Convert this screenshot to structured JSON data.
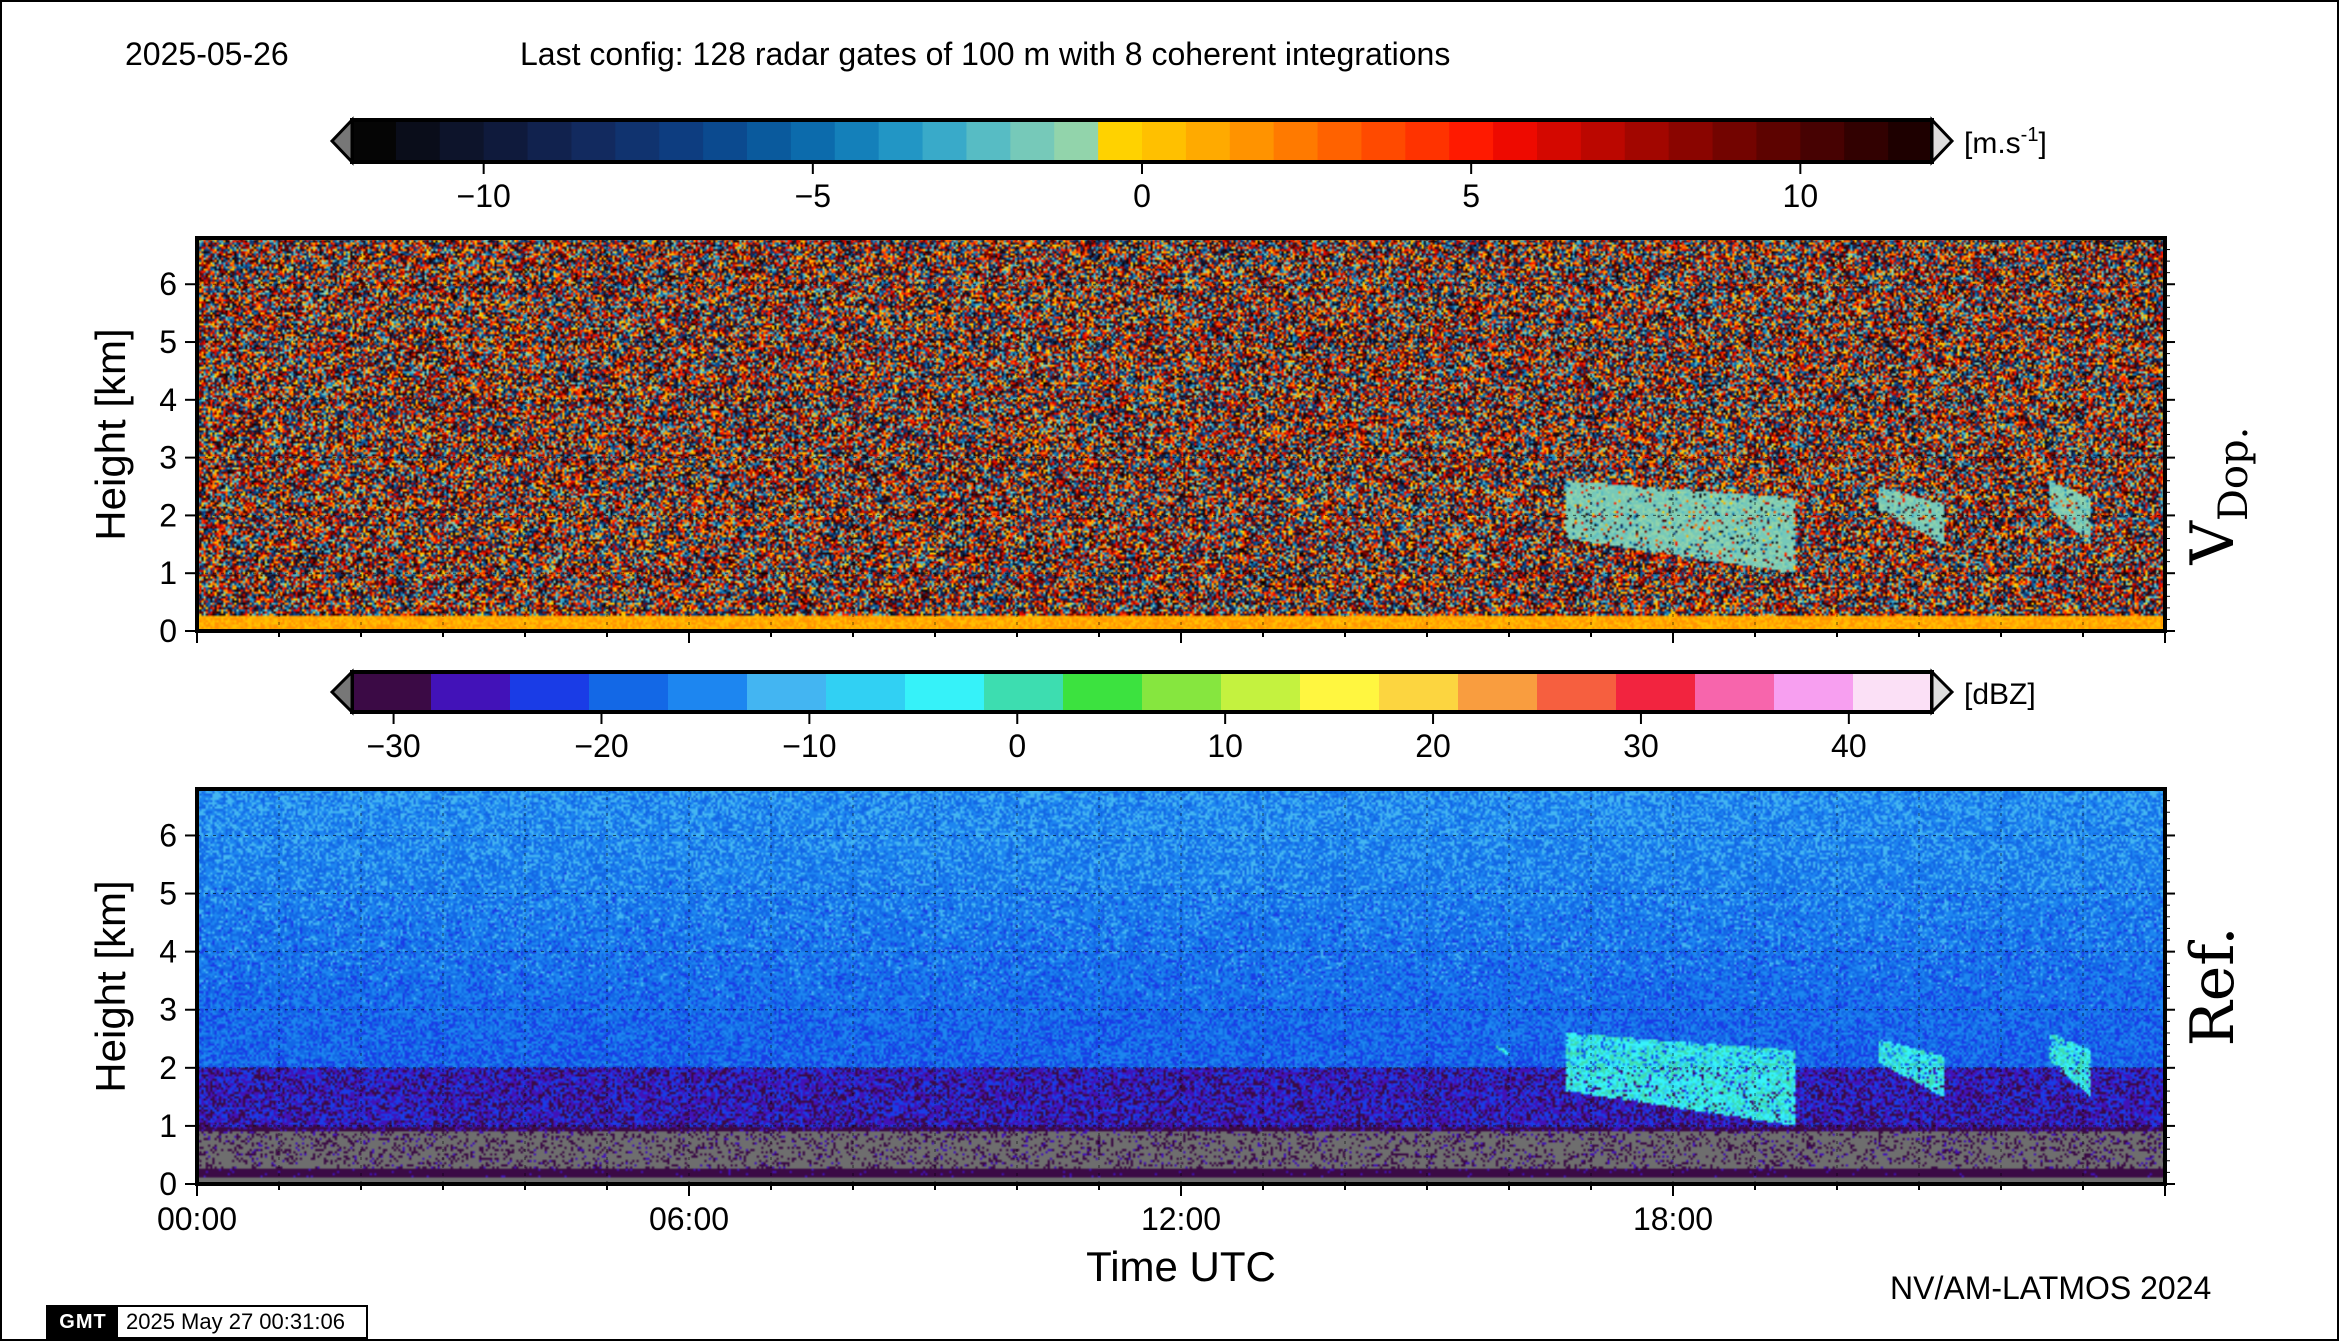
{
  "header": {
    "date": "2025-05-26",
    "config": "Last config: 128 radar gates of 100 m with 8 coherent integrations"
  },
  "footer": {
    "credit": "NV/AM-LATMOS 2024",
    "stamp_logo": "GMT",
    "stamp_time": "2025 May 27 00:31:06"
  },
  "chart_data": [
    {
      "type": "heatmap",
      "panel_label": "V",
      "panel_label_sub": "Dop.",
      "ylabel": "Height [km]",
      "ylim": [
        0,
        6.8
      ],
      "yticks": [
        "0",
        "1",
        "2",
        "3",
        "4",
        "5",
        "6"
      ],
      "xlim": [
        0,
        24
      ],
      "grid": true,
      "colorbar": {
        "unit": "[m.s",
        "unit_sup": "-1",
        "unit_end": "]",
        "range": [
          -12,
          12
        ],
        "ticks": [
          "−10",
          "−5",
          "0",
          "5",
          "10"
        ],
        "tick_values": [
          -10,
          -5,
          0,
          5,
          10
        ],
        "colors": [
          "#050505",
          "#0a0d1a",
          "#0d142b",
          "#0f1a3c",
          "#11224e",
          "#122a5f",
          "#10336f",
          "#0d3d80",
          "#0b4a8f",
          "#0a5a9d",
          "#0c6bac",
          "#1480ba",
          "#2296c5",
          "#39aac9",
          "#57bcc4",
          "#76c9b9",
          "#92d4ab",
          "#ffd200",
          "#ffc000",
          "#ffaa00",
          "#ff9300",
          "#ff7a00",
          "#ff6200",
          "#ff4a00",
          "#ff3300",
          "#ff1a00",
          "#ee0a00",
          "#d40800",
          "#bb0700",
          "#a20600",
          "#8a0500",
          "#730400",
          "#5d0300",
          "#470202",
          "#320101",
          "#1e0000"
        ]
      },
      "features": [
        {
          "name": "low-level echo layer",
          "x_range": [
            0,
            24
          ],
          "height_range": [
            0.0,
            0.25
          ],
          "value": 1
        },
        {
          "name": "cloud",
          "x_range": [
            16.7,
            19.5
          ],
          "height_range": [
            1.0,
            2.6
          ],
          "value": -1.5
        },
        {
          "name": "cloud",
          "x_range": [
            20.5,
            21.3
          ],
          "height_range": [
            1.5,
            2.5
          ],
          "value": -1.5
        },
        {
          "name": "cloud",
          "x_range": [
            22.6,
            23.1
          ],
          "height_range": [
            1.5,
            2.6
          ],
          "value": -1.5
        },
        {
          "name": "cloud",
          "x_range": [
            15.4,
            16.0
          ],
          "height_range": [
            2.2,
            2.6
          ],
          "value": -1.5
        }
      ]
    },
    {
      "type": "heatmap",
      "panel_label": "Ref.",
      "ylabel": "Height [km]",
      "xlabel": "Time UTC",
      "ylim": [
        0,
        6.8
      ],
      "yticks": [
        "0",
        "1",
        "2",
        "3",
        "4",
        "5",
        "6"
      ],
      "xlim": [
        0,
        24
      ],
      "xticks": [
        "00:00",
        "06:00",
        "12:00",
        "18:00"
      ],
      "xtick_values": [
        0,
        6,
        12,
        18
      ],
      "grid": true,
      "colorbar": {
        "unit": "[dBZ]",
        "range": [
          -32,
          44
        ],
        "ticks": [
          "−30",
          "−20",
          "−10",
          "0",
          "10",
          "20",
          "30",
          "40"
        ],
        "tick_values": [
          -30,
          -20,
          -10,
          0,
          10,
          20,
          30,
          40
        ],
        "colors": [
          "#3b0a45",
          "#4212b8",
          "#1a3ce6",
          "#1368e6",
          "#1d86f0",
          "#43b5f2",
          "#31d0f3",
          "#36f2f9",
          "#3dddb0",
          "#3ce23f",
          "#86e63f",
          "#c4f23f",
          "#fff640",
          "#fcd540",
          "#f99d3f",
          "#f65f3f",
          "#f2243f",
          "#f765ac",
          "#f79ff0",
          "#fbe0f6"
        ]
      },
      "features": [
        {
          "name": "surface clutter",
          "x_range": [
            0,
            24
          ],
          "height_range": [
            0.1,
            0.25
          ],
          "value": -30
        },
        {
          "name": "background noise",
          "x_range": [
            0,
            24
          ],
          "height_range": [
            0.25,
            6.8
          ],
          "value": -20
        },
        {
          "name": "cloud",
          "x_range": [
            16.7,
            19.5
          ],
          "height_range": [
            1.0,
            2.6
          ],
          "value": -3
        },
        {
          "name": "cloud",
          "x_range": [
            20.5,
            21.3
          ],
          "height_range": [
            1.5,
            2.5
          ],
          "value": -3
        },
        {
          "name": "cloud",
          "x_range": [
            22.6,
            23.1
          ],
          "height_range": [
            1.5,
            2.6
          ],
          "value": -3
        },
        {
          "name": "cloud",
          "x_range": [
            15.4,
            16.0
          ],
          "height_range": [
            2.2,
            2.6
          ],
          "value": -3
        }
      ]
    }
  ]
}
